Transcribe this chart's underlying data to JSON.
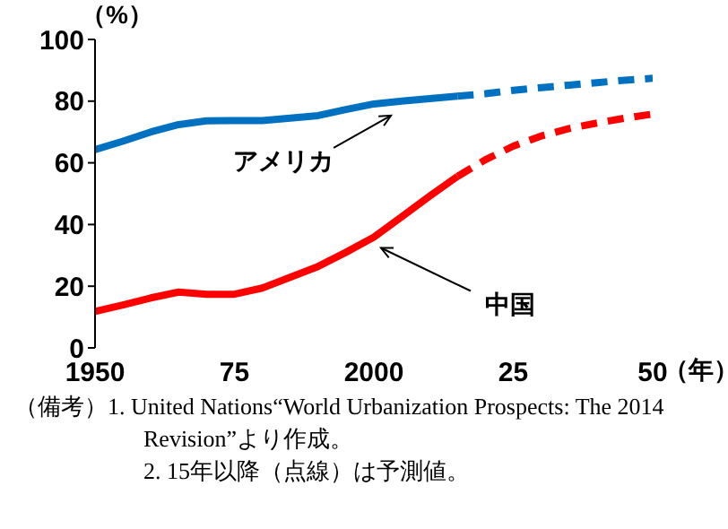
{
  "chart_data": {
    "type": "line",
    "ylabel": "（%）",
    "xlabel": "（年）",
    "xlim": [
      1950,
      2050
    ],
    "xticks": [
      1950,
      {
        "value": 1975,
        "label": "75"
      },
      2000,
      {
        "value": 2025,
        "label": "25"
      },
      {
        "value": 2050,
        "label": "50"
      }
    ],
    "ylim": [
      0,
      100
    ],
    "yticks": [
      0,
      20,
      40,
      60,
      80,
      100
    ],
    "grid": false,
    "legend": false,
    "marker": "none",
    "series": [
      {
        "name": "アメリカ",
        "color": "#0070c0",
        "line_style": "solid",
        "x": [
          1950,
          1955,
          1960,
          1965,
          1970,
          1975,
          1980,
          1985,
          1990,
          1995,
          2000,
          2005,
          2010,
          2015
        ],
        "values": [
          64.3,
          67,
          70,
          72.4,
          73.6,
          73.7,
          73.7,
          74.5,
          75.3,
          77.3,
          79.1,
          80,
          80.8,
          81.6
        ]
      },
      {
        "color": "#0070c0",
        "line_style": "dashed",
        "x": [
          2015,
          2020,
          2025,
          2030,
          2035,
          2040,
          2045,
          2050
        ],
        "values": [
          81.6,
          82.4,
          83.5,
          84.4,
          85.2,
          86,
          86.8,
          87.4
        ]
      },
      {
        "name": "中国",
        "color": "#ff0000",
        "line_style": "solid",
        "x": [
          1950,
          1955,
          1960,
          1965,
          1970,
          1975,
          1980,
          1985,
          1990,
          1995,
          2000,
          2005,
          2010,
          2015
        ],
        "values": [
          11.8,
          13.9,
          16.2,
          18.1,
          17.4,
          17.4,
          19.4,
          22.9,
          26.4,
          31,
          35.9,
          42.5,
          49.2,
          55.6
        ]
      },
      {
        "color": "#ff0000",
        "line_style": "dashed",
        "x": [
          2015,
          2020,
          2025,
          2030,
          2035,
          2040,
          2045,
          2050
        ],
        "values": [
          55.6,
          61,
          65.4,
          68.7,
          71.1,
          72.9,
          74.5,
          75.8
        ]
      }
    ],
    "annotations": [
      "（備考）1. United Nations“World Urbanization Prospects: The 2014 Revision”より作成。",
      "2. 15年以降（点線）は予測値。"
    ]
  }
}
